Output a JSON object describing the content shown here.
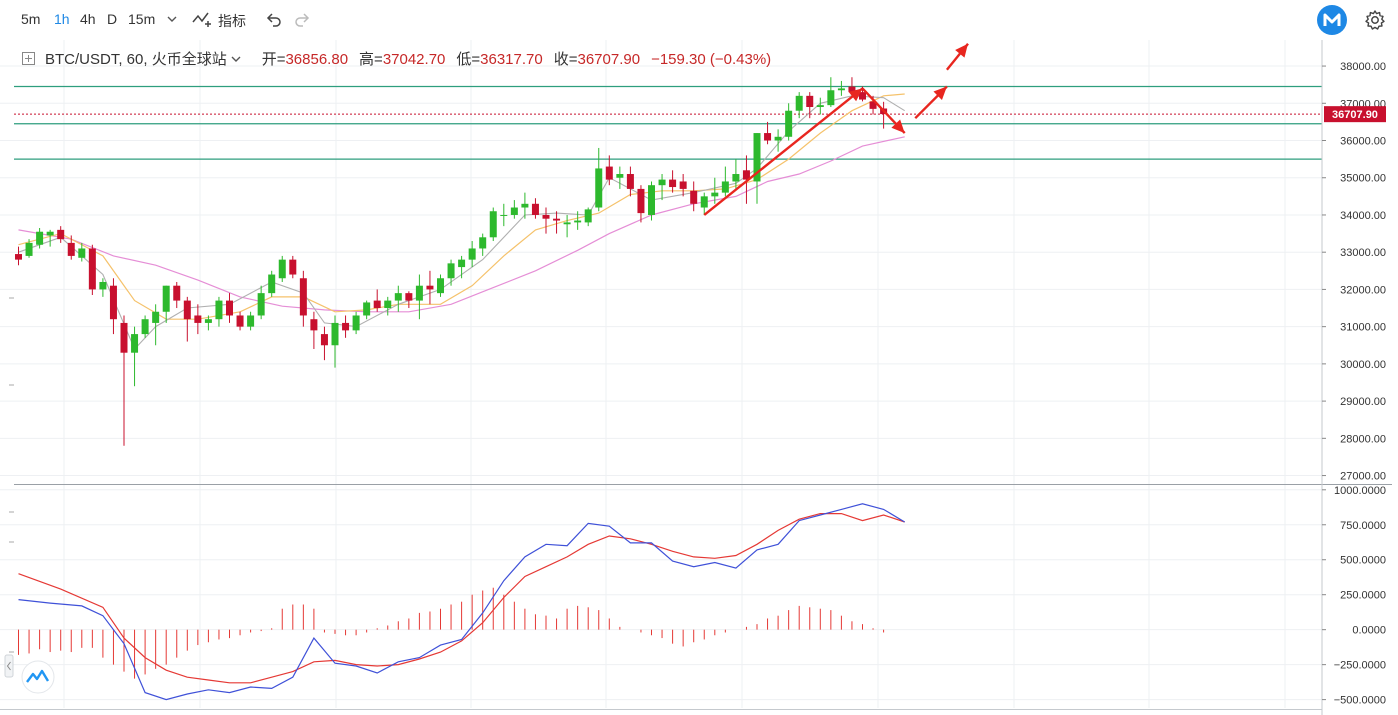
{
  "toolbar": {
    "timeframes": [
      "5m",
      "1h",
      "4h",
      "D",
      "15m"
    ],
    "active_timeframe": "1h",
    "indicators_label": "指标"
  },
  "legend": {
    "symbol": "BTC/USDT, 60, 火币全球站",
    "open_label": "开=",
    "open": "36856.80",
    "high_label": "高=",
    "high": "37042.70",
    "low_label": "低=",
    "low": "36317.70",
    "close_label": "收=",
    "close": "36707.90",
    "change": "−159.30 (−0.43%)"
  },
  "colors": {
    "up": "#2db92d",
    "down": "#c8102e",
    "ma_fast": "#b0b0b0",
    "ma_mid": "#f5c26b",
    "ma_slow": "#e58ed6",
    "macd_line": "#3f51d8",
    "signal_line": "#e53935",
    "hist": "#e53935",
    "hline": "#2e9e7e",
    "arrow": "#e8261f",
    "price_tag": "#c8102e"
  },
  "chart_data": [
    {
      "type": "candlestick",
      "ylim": [
        26800,
        38700
      ],
      "yticks": [
        "38000.00",
        "37000.00",
        "36000.00",
        "35000.00",
        "34000.00",
        "33000.00",
        "32000.00",
        "31000.00",
        "30000.00",
        "29000.00",
        "28000.00",
        "27000.00"
      ],
      "ytick_values": [
        38000,
        37000,
        36000,
        35000,
        34000,
        33000,
        32000,
        31000,
        30000,
        29000,
        28000,
        27000
      ],
      "current_price_label": "36707.90",
      "current_price": 36707.9,
      "horizontal_levels": [
        37450,
        36450,
        35500
      ],
      "candles": [
        [
          32950,
          33150,
          32650,
          32800
        ],
        [
          32900,
          33350,
          32850,
          33250
        ],
        [
          33200,
          33650,
          33100,
          33550
        ],
        [
          33450,
          33600,
          33150,
          33550
        ],
        [
          33600,
          33700,
          33250,
          33350
        ],
        [
          33250,
          33450,
          32800,
          32900
        ],
        [
          32850,
          33250,
          32750,
          33100
        ],
        [
          33100,
          33200,
          31850,
          32000
        ],
        [
          32000,
          32300,
          31800,
          32200
        ],
        [
          32100,
          32300,
          30800,
          31200
        ],
        [
          31100,
          31300,
          27800,
          30300
        ],
        [
          30300,
          31000,
          29400,
          30800
        ],
        [
          30800,
          31300,
          30700,
          31200
        ],
        [
          31100,
          31600,
          30500,
          31400
        ],
        [
          31400,
          32100,
          31100,
          32100
        ],
        [
          32100,
          32200,
          31500,
          31700
        ],
        [
          31700,
          31800,
          30600,
          31200
        ],
        [
          31300,
          31600,
          30800,
          31100
        ],
        [
          31100,
          31300,
          30900,
          31200
        ],
        [
          31200,
          31800,
          31000,
          31700
        ],
        [
          31700,
          31900,
          31100,
          31300
        ],
        [
          31300,
          31400,
          30900,
          31000
        ],
        [
          31000,
          31400,
          30900,
          31300
        ],
        [
          31300,
          32100,
          31200,
          31900
        ],
        [
          31900,
          32500,
          31800,
          32400
        ],
        [
          32300,
          32900,
          32200,
          32800
        ],
        [
          32800,
          32900,
          32300,
          32400
        ],
        [
          32300,
          32500,
          31000,
          31300
        ],
        [
          31200,
          31400,
          30400,
          30900
        ],
        [
          30800,
          31000,
          30100,
          30500
        ],
        [
          30500,
          31300,
          29900,
          31100
        ],
        [
          31100,
          31300,
          30700,
          30900
        ],
        [
          30900,
          31400,
          30800,
          31300
        ],
        [
          31300,
          31700,
          31200,
          31650
        ],
        [
          31700,
          32000,
          31400,
          31500
        ],
        [
          31500,
          31800,
          31300,
          31700
        ],
        [
          31700,
          32100,
          31400,
          31900
        ],
        [
          31900,
          31950,
          31500,
          31700
        ],
        [
          31700,
          32400,
          31200,
          32100
        ],
        [
          32100,
          32500,
          31600,
          32000
        ],
        [
          31900,
          32400,
          31800,
          32300
        ],
        [
          32300,
          32800,
          32100,
          32700
        ],
        [
          32600,
          32900,
          32300,
          32800
        ],
        [
          32800,
          33300,
          32600,
          33100
        ],
        [
          33100,
          33500,
          32900,
          33400
        ],
        [
          33400,
          34200,
          33300,
          34100
        ],
        [
          34000,
          34300,
          33700,
          34000
        ],
        [
          34000,
          34400,
          33900,
          34200
        ],
        [
          34200,
          34600,
          33900,
          34300
        ],
        [
          34300,
          34450,
          33900,
          34000
        ],
        [
          34000,
          34200,
          33500,
          33900
        ],
        [
          33900,
          34100,
          33500,
          33850
        ],
        [
          33750,
          34000,
          33400,
          33800
        ],
        [
          33800,
          34100,
          33600,
          33850
        ],
        [
          33800,
          34200,
          33700,
          34150
        ],
        [
          34200,
          35800,
          34100,
          35250
        ],
        [
          35300,
          35600,
          34800,
          34950
        ],
        [
          35000,
          35300,
          34700,
          35100
        ],
        [
          35100,
          35300,
          34500,
          34700
        ],
        [
          34700,
          34800,
          33800,
          34050
        ],
        [
          34000,
          34900,
          33850,
          34800
        ],
        [
          34800,
          35100,
          34400,
          34950
        ],
        [
          34950,
          35200,
          34600,
          34750
        ],
        [
          34900,
          35100,
          34500,
          34700
        ],
        [
          34650,
          34900,
          34100,
          34300
        ],
        [
          34200,
          34600,
          34000,
          34500
        ],
        [
          34500,
          35000,
          34300,
          34600
        ],
        [
          34600,
          35300,
          34500,
          34900
        ],
        [
          34900,
          35500,
          34700,
          35100
        ],
        [
          35200,
          35600,
          34300,
          34950
        ],
        [
          34900,
          36200,
          34300,
          36200
        ],
        [
          36200,
          36500,
          35900,
          36000
        ],
        [
          36000,
          36300,
          35700,
          36100
        ],
        [
          36100,
          37000,
          36000,
          36800
        ],
        [
          36800,
          37300,
          36600,
          37200
        ],
        [
          37200,
          37300,
          36600,
          36900
        ],
        [
          36900,
          37150,
          36700,
          36950
        ],
        [
          36950,
          37700,
          36900,
          37350
        ],
        [
          37350,
          37600,
          37200,
          37400
        ],
        [
          37450,
          37700,
          37250,
          37300
        ],
        [
          37300,
          37450,
          37050,
          37100
        ],
        [
          37050,
          37200,
          36700,
          36850
        ],
        [
          36860,
          37040,
          36320,
          36710
        ]
      ],
      "ma_fast": [
        [
          0,
          33000
        ],
        [
          4,
          33400
        ],
        [
          8,
          32400
        ],
        [
          11,
          30400
        ],
        [
          13,
          31000
        ],
        [
          16,
          31500
        ],
        [
          20,
          31600
        ],
        [
          24,
          32200
        ],
        [
          27,
          31900
        ],
        [
          29,
          31100
        ],
        [
          32,
          31000
        ],
        [
          36,
          31600
        ],
        [
          40,
          32000
        ],
        [
          44,
          32800
        ],
        [
          48,
          34000
        ],
        [
          51,
          34050
        ],
        [
          54,
          34000
        ],
        [
          56,
          35000
        ],
        [
          60,
          34400
        ],
        [
          64,
          34600
        ],
        [
          68,
          34850
        ],
        [
          70,
          35250
        ],
        [
          73,
          36250
        ],
        [
          76,
          37000
        ],
        [
          79,
          37200
        ],
        [
          82,
          37150
        ],
        [
          84,
          36800
        ]
      ],
      "ma_mid": [
        [
          0,
          33200
        ],
        [
          4,
          33500
        ],
        [
          8,
          32900
        ],
        [
          11,
          31700
        ],
        [
          14,
          31200
        ],
        [
          17,
          31200
        ],
        [
          21,
          31400
        ],
        [
          24,
          31800
        ],
        [
          27,
          31800
        ],
        [
          30,
          31400
        ],
        [
          33,
          31450
        ],
        [
          36,
          31600
        ],
        [
          40,
          31600
        ],
        [
          43,
          32100
        ],
        [
          46,
          32900
        ],
        [
          49,
          33600
        ],
        [
          52,
          33850
        ],
        [
          55,
          34050
        ],
        [
          58,
          34550
        ],
        [
          61,
          34650
        ],
        [
          64,
          34650
        ],
        [
          67,
          34700
        ],
        [
          70,
          34950
        ],
        [
          73,
          35500
        ],
        [
          76,
          36200
        ],
        [
          79,
          36800
        ],
        [
          82,
          37200
        ],
        [
          84,
          37250
        ]
      ],
      "ma_slow": [
        [
          0,
          33600
        ],
        [
          5,
          33350
        ],
        [
          9,
          32900
        ],
        [
          13,
          32650
        ],
        [
          17,
          32250
        ],
        [
          21,
          31800
        ],
        [
          25,
          31550
        ],
        [
          29,
          31450
        ],
        [
          33,
          31400
        ],
        [
          37,
          31400
        ],
        [
          41,
          31600
        ],
        [
          45,
          32050
        ],
        [
          49,
          32500
        ],
        [
          53,
          33050
        ],
        [
          56,
          33500
        ],
        [
          60,
          34000
        ],
        [
          64,
          34300
        ],
        [
          68,
          34500
        ],
        [
          71,
          34900
        ],
        [
          74,
          35100
        ],
        [
          77,
          35450
        ],
        [
          80,
          35850
        ],
        [
          84,
          36100
        ]
      ]
    },
    {
      "type": "macd",
      "ylim": [
        -560,
        1020
      ],
      "yticks": [
        "1000.0000",
        "750.0000",
        "500.0000",
        "250.0000",
        "0.0000",
        "−250.0000",
        "−500.0000"
      ],
      "ytick_values": [
        1000,
        750,
        500,
        250,
        0,
        -250,
        -500
      ],
      "macd": [
        [
          0,
          215
        ],
        [
          3,
          190
        ],
        [
          6,
          170
        ],
        [
          8,
          100
        ],
        [
          10,
          -100
        ],
        [
          12,
          -450
        ],
        [
          14,
          -500
        ],
        [
          16,
          -460
        ],
        [
          18,
          -430
        ],
        [
          20,
          -450
        ],
        [
          22,
          -410
        ],
        [
          24,
          -420
        ],
        [
          26,
          -340
        ],
        [
          28,
          -60
        ],
        [
          30,
          -240
        ],
        [
          32,
          -260
        ],
        [
          34,
          -310
        ],
        [
          36,
          -230
        ],
        [
          38,
          -200
        ],
        [
          40,
          -110
        ],
        [
          42,
          -70
        ],
        [
          44,
          120
        ],
        [
          46,
          350
        ],
        [
          48,
          520
        ],
        [
          50,
          610
        ],
        [
          52,
          600
        ],
        [
          54,
          760
        ],
        [
          56,
          740
        ],
        [
          58,
          620
        ],
        [
          60,
          620
        ],
        [
          62,
          490
        ],
        [
          64,
          450
        ],
        [
          66,
          480
        ],
        [
          68,
          440
        ],
        [
          70,
          570
        ],
        [
          72,
          610
        ],
        [
          74,
          780
        ],
        [
          76,
          820
        ],
        [
          78,
          860
        ],
        [
          80,
          900
        ],
        [
          82,
          860
        ],
        [
          84,
          770
        ]
      ],
      "signal": [
        [
          0,
          400
        ],
        [
          4,
          290
        ],
        [
          8,
          160
        ],
        [
          10,
          -60
        ],
        [
          12,
          -200
        ],
        [
          14,
          -290
        ],
        [
          16,
          -340
        ],
        [
          18,
          -360
        ],
        [
          20,
          -380
        ],
        [
          22,
          -380
        ],
        [
          24,
          -340
        ],
        [
          26,
          -300
        ],
        [
          28,
          -230
        ],
        [
          30,
          -220
        ],
        [
          32,
          -250
        ],
        [
          34,
          -260
        ],
        [
          36,
          -250
        ],
        [
          38,
          -210
        ],
        [
          40,
          -160
        ],
        [
          42,
          -80
        ],
        [
          44,
          50
        ],
        [
          46,
          230
        ],
        [
          48,
          380
        ],
        [
          50,
          450
        ],
        [
          52,
          520
        ],
        [
          54,
          610
        ],
        [
          56,
          670
        ],
        [
          58,
          650
        ],
        [
          60,
          610
        ],
        [
          62,
          560
        ],
        [
          64,
          520
        ],
        [
          66,
          510
        ],
        [
          68,
          530
        ],
        [
          70,
          610
        ],
        [
          72,
          710
        ],
        [
          74,
          790
        ],
        [
          76,
          830
        ],
        [
          78,
          830
        ],
        [
          80,
          780
        ],
        [
          82,
          820
        ],
        [
          84,
          770
        ]
      ],
      "histogram": [
        -180,
        -170,
        -140,
        -160,
        -150,
        -160,
        -130,
        -130,
        -200,
        -250,
        -300,
        -350,
        -320,
        -280,
        -250,
        -200,
        -150,
        -110,
        -90,
        -70,
        -60,
        -40,
        -20,
        -10,
        10,
        150,
        180,
        180,
        150,
        -20,
        -30,
        -40,
        -40,
        -20,
        10,
        30,
        60,
        80,
        120,
        130,
        150,
        180,
        200,
        250,
        280,
        300,
        250,
        200,
        150,
        110,
        100,
        80,
        150,
        170,
        160,
        140,
        80,
        20,
        0,
        -20,
        -40,
        -60,
        -100,
        -120,
        -90,
        -70,
        -40,
        -20,
        0,
        20,
        40,
        80,
        100,
        140,
        170,
        160,
        150,
        140,
        100,
        60,
        40,
        10,
        -20
      ]
    }
  ],
  "annotations": {
    "arrows": [
      {
        "from": [
          65,
          34000
        ],
        "to": [
          80,
          37400
        ]
      },
      {
        "from": [
          80,
          37400
        ],
        "to": [
          84,
          36200
        ]
      },
      {
        "from": [
          85,
          36600
        ],
        "to": [
          88,
          37450
        ]
      },
      {
        "from": [
          88,
          37900
        ],
        "to": [
          90,
          38600
        ]
      }
    ]
  }
}
